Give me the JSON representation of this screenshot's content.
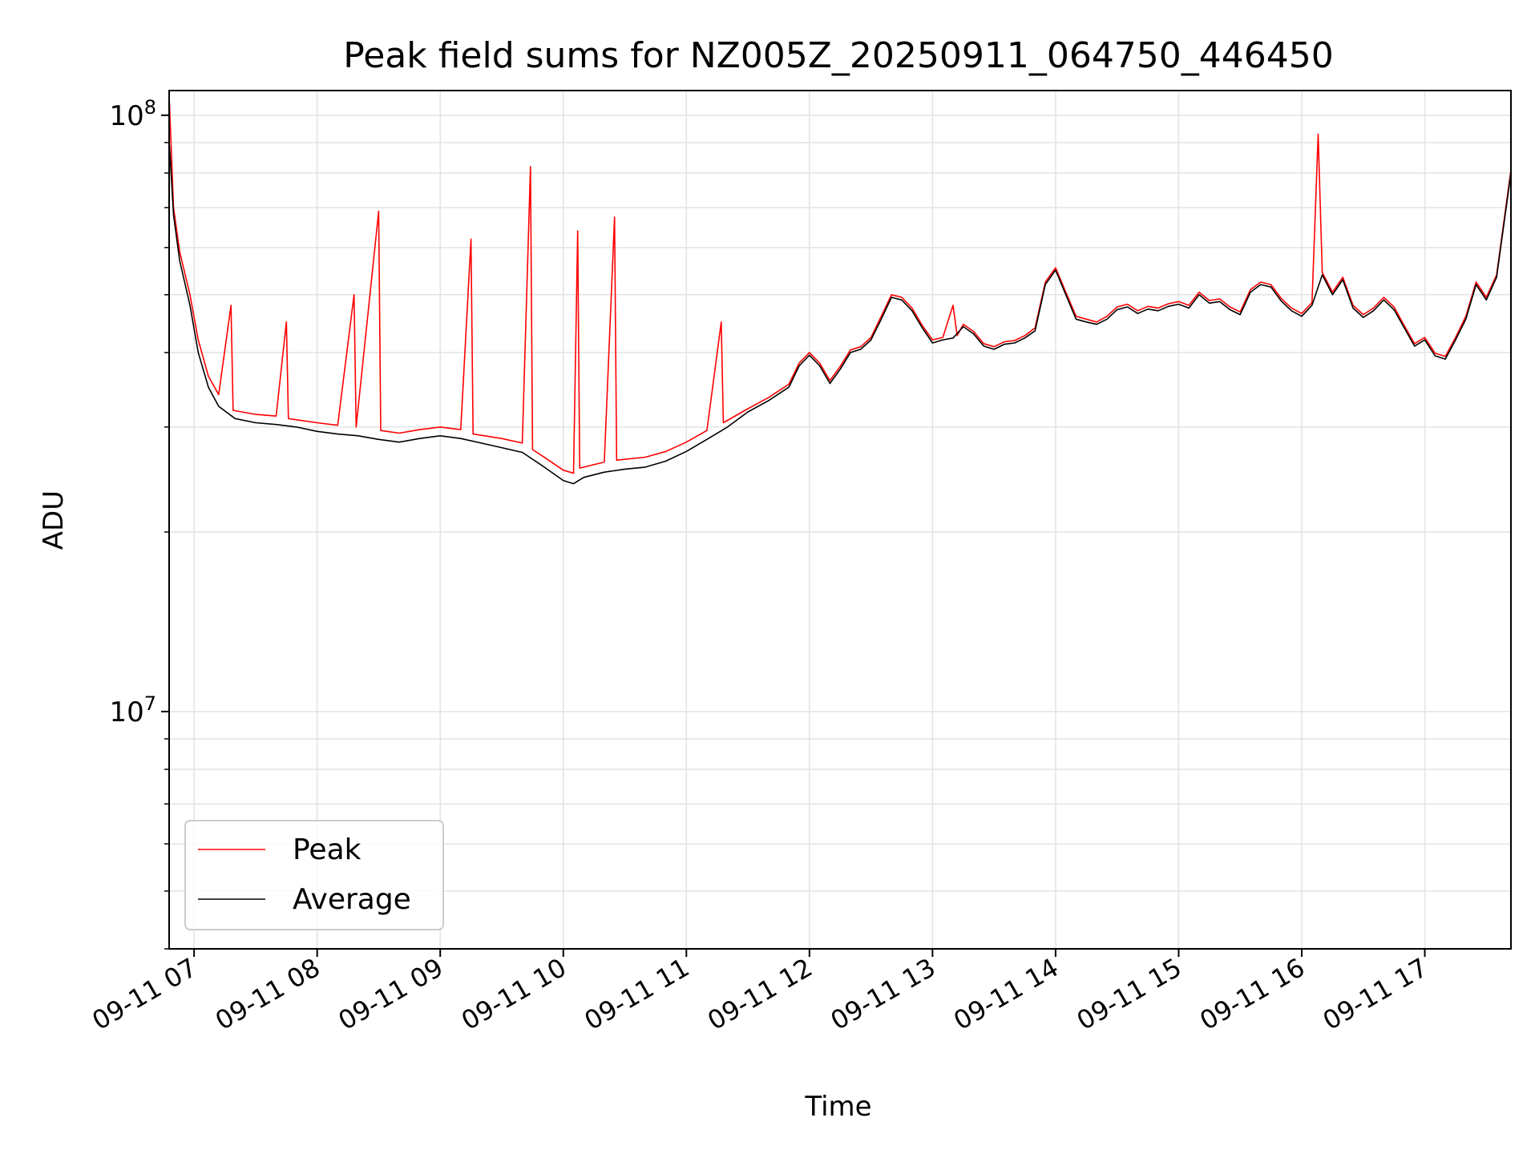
{
  "chart_data": {
    "type": "line",
    "title": "Peak field sums for NZ005Z_20250911_064750_446450",
    "xlabel": "Time",
    "ylabel": "ADU",
    "yscale": "log",
    "xlim": [
      "2025-09-11 06:47:50",
      "2025-09-11 17:42:00"
    ],
    "ylim": [
      4000000,
      110000000
    ],
    "grid": true,
    "legend_position": "lower-left",
    "x_ticks": [
      {
        "t": "2025-09-11 07:00",
        "label": "09-11 07"
      },
      {
        "t": "2025-09-11 08:00",
        "label": "09-11 08"
      },
      {
        "t": "2025-09-11 09:00",
        "label": "09-11 09"
      },
      {
        "t": "2025-09-11 10:00",
        "label": "09-11 10"
      },
      {
        "t": "2025-09-11 11:00",
        "label": "09-11 11"
      },
      {
        "t": "2025-09-11 12:00",
        "label": "09-11 12"
      },
      {
        "t": "2025-09-11 13:00",
        "label": "09-11 13"
      },
      {
        "t": "2025-09-11 14:00",
        "label": "09-11 14"
      },
      {
        "t": "2025-09-11 15:00",
        "label": "09-11 15"
      },
      {
        "t": "2025-09-11 16:00",
        "label": "09-11 16"
      },
      {
        "t": "2025-09-11 17:00",
        "label": "09-11 17"
      }
    ],
    "y_ticks": [
      {
        "v": 10000000,
        "base": "10",
        "exp": "7"
      },
      {
        "v": 100000000,
        "base": "10",
        "exp": "8"
      }
    ],
    "series": [
      {
        "name": "Average",
        "color": "#000000",
        "points": [
          [
            "2025-09-11 06:48",
            89000000
          ],
          [
            "2025-09-11 06:50",
            68000000
          ],
          [
            "2025-09-11 06:53",
            57000000
          ],
          [
            "2025-09-11 06:58",
            48000000
          ],
          [
            "2025-09-11 07:02",
            40000000
          ],
          [
            "2025-09-11 07:07",
            35000000
          ],
          [
            "2025-09-11 07:12",
            32500000
          ],
          [
            "2025-09-11 07:20",
            31000000
          ],
          [
            "2025-09-11 07:30",
            30500000
          ],
          [
            "2025-09-11 07:40",
            30300000
          ],
          [
            "2025-09-11 07:50",
            30000000
          ],
          [
            "2025-09-11 08:00",
            29500000
          ],
          [
            "2025-09-11 08:10",
            29200000
          ],
          [
            "2025-09-11 08:20",
            29000000
          ],
          [
            "2025-09-11 08:30",
            28600000
          ],
          [
            "2025-09-11 08:40",
            28300000
          ],
          [
            "2025-09-11 08:50",
            28700000
          ],
          [
            "2025-09-11 09:00",
            29000000
          ],
          [
            "2025-09-11 09:10",
            28700000
          ],
          [
            "2025-09-11 09:20",
            28200000
          ],
          [
            "2025-09-11 09:30",
            27700000
          ],
          [
            "2025-09-11 09:40",
            27200000
          ],
          [
            "2025-09-11 09:50",
            25800000
          ],
          [
            "2025-09-11 10:00",
            24400000
          ],
          [
            "2025-09-11 10:05",
            24100000
          ],
          [
            "2025-09-11 10:10",
            24700000
          ],
          [
            "2025-09-11 10:20",
            25200000
          ],
          [
            "2025-09-11 10:30",
            25500000
          ],
          [
            "2025-09-11 10:40",
            25700000
          ],
          [
            "2025-09-11 10:50",
            26300000
          ],
          [
            "2025-09-11 11:00",
            27300000
          ],
          [
            "2025-09-11 11:10",
            28600000
          ],
          [
            "2025-09-11 11:20",
            30000000
          ],
          [
            "2025-09-11 11:30",
            31800000
          ],
          [
            "2025-09-11 11:40",
            33200000
          ],
          [
            "2025-09-11 11:50",
            35000000
          ],
          [
            "2025-09-11 11:55",
            38000000
          ],
          [
            "2025-09-11 12:00",
            39600000
          ],
          [
            "2025-09-11 12:05",
            38000000
          ],
          [
            "2025-09-11 12:10",
            35500000
          ],
          [
            "2025-09-11 12:15",
            37500000
          ],
          [
            "2025-09-11 12:20",
            40000000
          ],
          [
            "2025-09-11 12:25",
            40500000
          ],
          [
            "2025-09-11 12:30",
            42000000
          ],
          [
            "2025-09-11 12:35",
            45500000
          ],
          [
            "2025-09-11 12:40",
            49500000
          ],
          [
            "2025-09-11 12:45",
            49000000
          ],
          [
            "2025-09-11 12:50",
            47000000
          ],
          [
            "2025-09-11 12:55",
            44000000
          ],
          [
            "2025-09-11 13:00",
            41500000
          ],
          [
            "2025-09-11 13:05",
            42000000
          ],
          [
            "2025-09-11 13:10",
            42300000
          ],
          [
            "2025-09-11 13:15",
            44200000
          ],
          [
            "2025-09-11 13:20",
            43000000
          ],
          [
            "2025-09-11 13:25",
            41000000
          ],
          [
            "2025-09-11 13:30",
            40500000
          ],
          [
            "2025-09-11 13:35",
            41300000
          ],
          [
            "2025-09-11 13:40",
            41500000
          ],
          [
            "2025-09-11 13:45",
            42300000
          ],
          [
            "2025-09-11 13:50",
            43500000
          ],
          [
            "2025-09-11 13:55",
            52000000
          ],
          [
            "2025-09-11 14:00",
            55000000
          ],
          [
            "2025-09-11 14:05",
            50000000
          ],
          [
            "2025-09-11 14:10",
            45500000
          ],
          [
            "2025-09-11 14:15",
            45000000
          ],
          [
            "2025-09-11 14:20",
            44600000
          ],
          [
            "2025-09-11 14:25",
            45500000
          ],
          [
            "2025-09-11 14:30",
            47200000
          ],
          [
            "2025-09-11 14:35",
            47700000
          ],
          [
            "2025-09-11 14:40",
            46500000
          ],
          [
            "2025-09-11 14:45",
            47300000
          ],
          [
            "2025-09-11 14:50",
            47000000
          ],
          [
            "2025-09-11 14:55",
            47800000
          ],
          [
            "2025-09-11 15:00",
            48200000
          ],
          [
            "2025-09-11 15:05",
            47500000
          ],
          [
            "2025-09-11 15:10",
            50000000
          ],
          [
            "2025-09-11 15:15",
            48400000
          ],
          [
            "2025-09-11 15:20",
            48700000
          ],
          [
            "2025-09-11 15:25",
            47200000
          ],
          [
            "2025-09-11 15:30",
            46300000
          ],
          [
            "2025-09-11 15:35",
            50500000
          ],
          [
            "2025-09-11 15:40",
            52000000
          ],
          [
            "2025-09-11 15:45",
            51500000
          ],
          [
            "2025-09-11 15:50",
            48800000
          ],
          [
            "2025-09-11 15:55",
            47000000
          ],
          [
            "2025-09-11 16:00",
            46000000
          ],
          [
            "2025-09-11 16:05",
            48000000
          ],
          [
            "2025-09-11 16:10",
            54000000
          ],
          [
            "2025-09-11 16:15",
            50000000
          ],
          [
            "2025-09-11 16:20",
            53000000
          ],
          [
            "2025-09-11 16:25",
            47500000
          ],
          [
            "2025-09-11 16:30",
            45800000
          ],
          [
            "2025-09-11 16:35",
            47000000
          ],
          [
            "2025-09-11 16:40",
            49000000
          ],
          [
            "2025-09-11 16:45",
            47200000
          ],
          [
            "2025-09-11 16:50",
            44000000
          ],
          [
            "2025-09-11 16:55",
            41000000
          ],
          [
            "2025-09-11 17:00",
            42000000
          ],
          [
            "2025-09-11 17:05",
            39500000
          ],
          [
            "2025-09-11 17:10",
            39000000
          ],
          [
            "2025-09-11 17:15",
            42000000
          ],
          [
            "2025-09-11 17:20",
            45500000
          ],
          [
            "2025-09-11 17:25",
            52000000
          ],
          [
            "2025-09-11 17:30",
            49000000
          ],
          [
            "2025-09-11 17:35",
            53500000
          ],
          [
            "2025-09-11 17:42",
            80000000
          ]
        ]
      },
      {
        "name": "Peak",
        "color": "#ff0000",
        "points": [
          [
            "2025-09-11 06:48",
            105000000
          ],
          [
            "2025-09-11 06:50",
            70000000
          ],
          [
            "2025-09-11 06:53",
            59000000
          ],
          [
            "2025-09-11 06:58",
            50000000
          ],
          [
            "2025-09-11 07:02",
            42000000
          ],
          [
            "2025-09-11 07:07",
            36500000
          ],
          [
            "2025-09-11 07:12",
            34000000
          ],
          [
            "2025-09-11 07:18",
            48000000
          ],
          [
            "2025-09-11 07:19",
            32000000
          ],
          [
            "2025-09-11 07:30",
            31500000
          ],
          [
            "2025-09-11 07:40",
            31300000
          ],
          [
            "2025-09-11 07:45",
            45000000
          ],
          [
            "2025-09-11 07:46",
            31000000
          ],
          [
            "2025-09-11 08:00",
            30500000
          ],
          [
            "2025-09-11 08:10",
            30200000
          ],
          [
            "2025-09-11 08:18",
            50000000
          ],
          [
            "2025-09-11 08:19",
            30000000
          ],
          [
            "2025-09-11 08:30",
            69000000
          ],
          [
            "2025-09-11 08:31",
            29600000
          ],
          [
            "2025-09-11 08:40",
            29300000
          ],
          [
            "2025-09-11 08:50",
            29700000
          ],
          [
            "2025-09-11 09:00",
            30000000
          ],
          [
            "2025-09-11 09:10",
            29700000
          ],
          [
            "2025-09-11 09:15",
            62000000
          ],
          [
            "2025-09-11 09:16",
            29200000
          ],
          [
            "2025-09-11 09:30",
            28700000
          ],
          [
            "2025-09-11 09:40",
            28200000
          ],
          [
            "2025-09-11 09:44",
            82000000
          ],
          [
            "2025-09-11 09:45",
            27500000
          ],
          [
            "2025-09-11 09:50",
            26800000
          ],
          [
            "2025-09-11 10:00",
            25400000
          ],
          [
            "2025-09-11 10:05",
            25100000
          ],
          [
            "2025-09-11 10:07",
            64000000
          ],
          [
            "2025-09-11 10:08",
            25600000
          ],
          [
            "2025-09-11 10:20",
            26200000
          ],
          [
            "2025-09-11 10:25",
            67500000
          ],
          [
            "2025-09-11 10:26",
            26400000
          ],
          [
            "2025-09-11 10:40",
            26700000
          ],
          [
            "2025-09-11 10:50",
            27300000
          ],
          [
            "2025-09-11 11:00",
            28300000
          ],
          [
            "2025-09-11 11:10",
            29600000
          ],
          [
            "2025-09-11 11:17",
            45000000
          ],
          [
            "2025-09-11 11:18",
            30500000
          ],
          [
            "2025-09-11 11:30",
            32200000
          ],
          [
            "2025-09-11 11:40",
            33600000
          ],
          [
            "2025-09-11 11:50",
            35400000
          ],
          [
            "2025-09-11 11:55",
            38400000
          ],
          [
            "2025-09-11 12:00",
            40000000
          ],
          [
            "2025-09-11 12:05",
            38400000
          ],
          [
            "2025-09-11 12:10",
            35900000
          ],
          [
            "2025-09-11 12:15",
            37900000
          ],
          [
            "2025-09-11 12:20",
            40400000
          ],
          [
            "2025-09-11 12:25",
            40900000
          ],
          [
            "2025-09-11 12:30",
            42400000
          ],
          [
            "2025-09-11 12:35",
            46000000
          ],
          [
            "2025-09-11 12:40",
            50000000
          ],
          [
            "2025-09-11 12:45",
            49500000
          ],
          [
            "2025-09-11 12:50",
            47500000
          ],
          [
            "2025-09-11 12:55",
            44400000
          ],
          [
            "2025-09-11 13:00",
            42000000
          ],
          [
            "2025-09-11 13:05",
            42400000
          ],
          [
            "2025-09-11 13:10",
            48000000
          ],
          [
            "2025-09-11 13:12",
            42700000
          ],
          [
            "2025-09-11 13:15",
            44600000
          ],
          [
            "2025-09-11 13:20",
            43400000
          ],
          [
            "2025-09-11 13:25",
            41400000
          ],
          [
            "2025-09-11 13:30",
            40900000
          ],
          [
            "2025-09-11 13:35",
            41700000
          ],
          [
            "2025-09-11 13:40",
            41900000
          ],
          [
            "2025-09-11 13:45",
            42700000
          ],
          [
            "2025-09-11 13:50",
            44000000
          ],
          [
            "2025-09-11 13:55",
            52500000
          ],
          [
            "2025-09-11 14:00",
            55500000
          ],
          [
            "2025-09-11 14:05",
            50500000
          ],
          [
            "2025-09-11 14:10",
            46000000
          ],
          [
            "2025-09-11 14:15",
            45500000
          ],
          [
            "2025-09-11 14:20",
            45000000
          ],
          [
            "2025-09-11 14:25",
            46000000
          ],
          [
            "2025-09-11 14:30",
            47700000
          ],
          [
            "2025-09-11 14:35",
            48200000
          ],
          [
            "2025-09-11 14:40",
            47000000
          ],
          [
            "2025-09-11 14:45",
            47800000
          ],
          [
            "2025-09-11 14:50",
            47500000
          ],
          [
            "2025-09-11 14:55",
            48300000
          ],
          [
            "2025-09-11 15:00",
            48700000
          ],
          [
            "2025-09-11 15:05",
            48000000
          ],
          [
            "2025-09-11 15:10",
            50500000
          ],
          [
            "2025-09-11 15:15",
            48900000
          ],
          [
            "2025-09-11 15:20",
            49200000
          ],
          [
            "2025-09-11 15:25",
            47700000
          ],
          [
            "2025-09-11 15:30",
            46800000
          ],
          [
            "2025-09-11 15:35",
            51000000
          ],
          [
            "2025-09-11 15:40",
            52500000
          ],
          [
            "2025-09-11 15:45",
            52000000
          ],
          [
            "2025-09-11 15:50",
            49300000
          ],
          [
            "2025-09-11 15:55",
            47500000
          ],
          [
            "2025-09-11 16:00",
            46500000
          ],
          [
            "2025-09-11 16:05",
            48500000
          ],
          [
            "2025-09-11 16:08",
            93000000
          ],
          [
            "2025-09-11 16:10",
            54500000
          ],
          [
            "2025-09-11 16:15",
            50500000
          ],
          [
            "2025-09-11 16:20",
            53500000
          ],
          [
            "2025-09-11 16:25",
            48000000
          ],
          [
            "2025-09-11 16:30",
            46300000
          ],
          [
            "2025-09-11 16:35",
            47500000
          ],
          [
            "2025-09-11 16:40",
            49500000
          ],
          [
            "2025-09-11 16:45",
            47700000
          ],
          [
            "2025-09-11 16:50",
            44400000
          ],
          [
            "2025-09-11 16:55",
            41400000
          ],
          [
            "2025-09-11 17:00",
            42400000
          ],
          [
            "2025-09-11 17:05",
            39900000
          ],
          [
            "2025-09-11 17:10",
            39400000
          ],
          [
            "2025-09-11 17:15",
            42400000
          ],
          [
            "2025-09-11 17:20",
            46000000
          ],
          [
            "2025-09-11 17:25",
            52500000
          ],
          [
            "2025-09-11 17:30",
            49500000
          ],
          [
            "2025-09-11 17:35",
            54000000
          ],
          [
            "2025-09-11 17:42",
            81000000
          ]
        ]
      }
    ],
    "legend": [
      {
        "name": "Peak",
        "color": "#ff0000"
      },
      {
        "name": "Average",
        "color": "#000000"
      }
    ]
  }
}
